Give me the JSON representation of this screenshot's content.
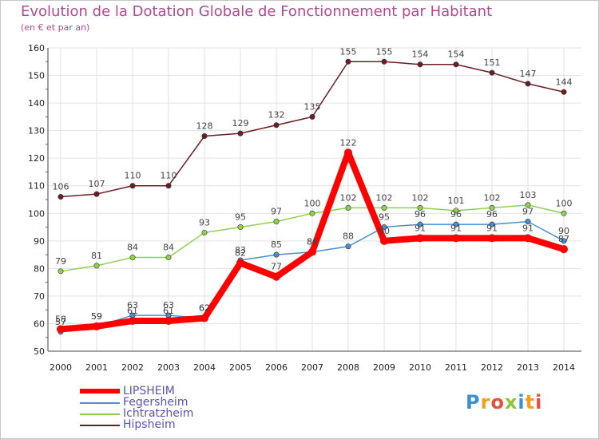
{
  "title": "Evolution de la Dotation Globale de Fonctionnement par Habitant",
  "subtitle": "(en € et par an)",
  "logo": {
    "text": "Proxiti"
  },
  "chart_data": {
    "type": "line",
    "title": "Evolution de la Dotation Globale de Fonctionnement par Habitant",
    "subtitle": "(en € et par an)",
    "xlabel": "",
    "ylabel": "",
    "ylim": [
      50,
      160
    ],
    "yticks": [
      50,
      60,
      70,
      80,
      90,
      100,
      110,
      120,
      130,
      140,
      150,
      160
    ],
    "grid": true,
    "legend_position": "bottom-left",
    "categories": [
      "2000",
      "2001",
      "2002",
      "2003",
      "2004",
      "2005",
      "2006",
      "2007",
      "2008",
      "2009",
      "2010",
      "2011",
      "2012",
      "2013",
      "2014"
    ],
    "series": [
      {
        "name": "Hipsheim",
        "color": "#6b1e24",
        "values": [
          106,
          107,
          110,
          110,
          128,
          129,
          132,
          135,
          155,
          155,
          154,
          154,
          151,
          147,
          144
        ]
      },
      {
        "name": "Ichtratzheim",
        "color": "#8fd14f",
        "values": [
          79,
          81,
          84,
          84,
          93,
          95,
          97,
          100,
          102,
          102,
          102,
          101,
          102,
          103,
          100
        ]
      },
      {
        "name": "Fegersheim",
        "color": "#4a8fcf",
        "values": [
          57,
          59,
          63,
          63,
          62,
          83,
          85,
          86,
          88,
          95,
          96,
          96,
          96,
          97,
          90
        ]
      },
      {
        "name": "LIPSHEIM",
        "color": "#ff0000",
        "values": [
          58,
          59,
          61,
          61,
          62,
          82,
          77,
          86,
          122,
          90,
          91,
          91,
          91,
          91,
          87
        ]
      }
    ],
    "legend": [
      "LIPSHEIM",
      "Fegersheim",
      "Ichtratzheim",
      "Hipsheim"
    ]
  }
}
